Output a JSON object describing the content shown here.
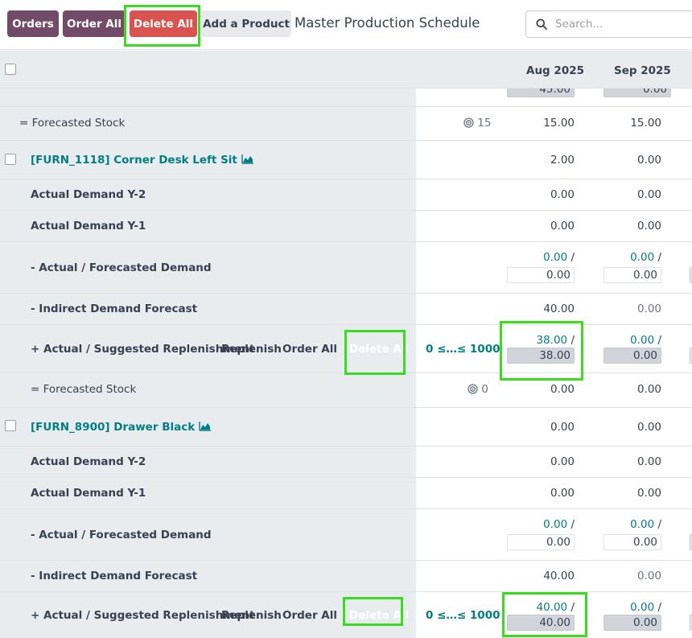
{
  "toolbar": {
    "orders_label": "Orders",
    "order_all_label": "Order All",
    "delete_all_label": "Delete All",
    "add_product_label": "Add a Product",
    "title": "Master Production Schedule",
    "search_placeholder": "Search..."
  },
  "columns": [
    "Aug 2025",
    "Sep 2025"
  ],
  "top_partial": {
    "aug": "45.00",
    "sep": "0.00"
  },
  "forecast1": {
    "label": "= Forecasted Stock",
    "safety": "15",
    "aug": "15.00",
    "sep": "15.00"
  },
  "product1": {
    "name": "[FURN_1118] Corner Desk Left Sit",
    "aug": "2.00",
    "sep": "0.00",
    "y2": {
      "label": "Actual Demand Y-2",
      "aug": "0.00",
      "sep": "0.00"
    },
    "y1": {
      "label": "Actual Demand Y-1",
      "aug": "0.00",
      "sep": "0.00"
    },
    "demand": {
      "label": "- Actual / Forecasted Demand",
      "aug_actual": "0.00",
      "aug_forecast": "0.00",
      "sep_actual": "0.00",
      "sep_forecast": "0.00"
    },
    "indirect": {
      "label": "- Indirect Demand Forecast",
      "aug": "40.00",
      "sep": "0.00"
    },
    "replenish": {
      "label": "+ Actual / Suggested Replenishment",
      "replenish_label": "Replenish",
      "order_all": "Order All",
      "delete_all": "Delete All",
      "range": "0 ≤…≤ 1000",
      "aug_actual": "38.00",
      "aug_suggested": "38.00",
      "sep_actual": "0.00",
      "sep_suggested": "0.00"
    },
    "forecast": {
      "label": "= Forecasted Stock",
      "safety": "0",
      "aug": "0.00",
      "sep": "0.00"
    }
  },
  "product2": {
    "name": "[FURN_8900] Drawer Black",
    "aug": "0.00",
    "sep": "0.00",
    "y2": {
      "label": "Actual Demand Y-2",
      "aug": "0.00",
      "sep": "0.00"
    },
    "y1": {
      "label": "Actual Demand Y-1",
      "aug": "0.00",
      "sep": "0.00"
    },
    "demand": {
      "label": "- Actual / Forecasted Demand",
      "aug_actual": "0.00",
      "aug_forecast": "0.00",
      "sep_actual": "0.00",
      "sep_forecast": "0.00"
    },
    "indirect": {
      "label": "- Indirect Demand Forecast",
      "aug": "40.00",
      "sep": "0.00"
    },
    "replenish": {
      "label": "+ Actual / Suggested Replenishment",
      "replenish_label": "Replenish",
      "order_all": "Order All",
      "delete_all": "Delete All",
      "range": "0 ≤…≤ 1000",
      "aug_actual": "40.00",
      "aug_suggested": "40.00",
      "sep_actual": "0.00",
      "sep_suggested": "0.00"
    }
  },
  "colors": {
    "primary": "#714b67",
    "danger": "#d9534f",
    "teal": "#017e84",
    "highlight": "#3bdc1e"
  }
}
